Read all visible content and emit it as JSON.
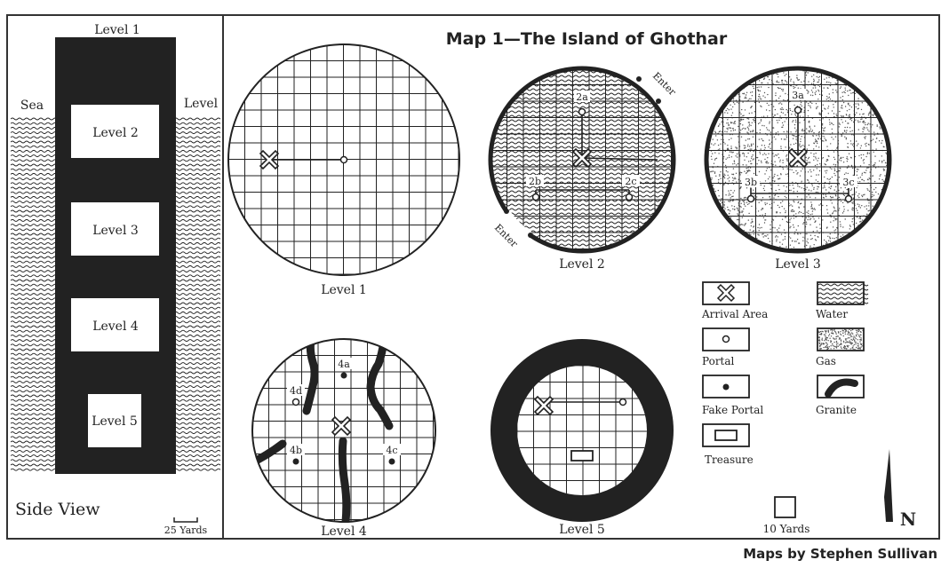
{
  "title": "Map 1—The Island of Ghothar",
  "credit": "Maps by Stephen Sullivan",
  "side_view": {
    "label": "Side View",
    "sea_label": "Sea",
    "level_label": "Level",
    "top_label": "Level 1",
    "levels": [
      "Level 2",
      "Level 3",
      "Level 4",
      "Level 5"
    ],
    "scale_label": "25 Yards"
  },
  "maps": {
    "level1": {
      "label": "Level 1"
    },
    "level2": {
      "label": "Level 2",
      "enter_top": "Enter",
      "enter_bottom": "Enter",
      "markers": [
        "2a",
        "2b",
        "2c"
      ]
    },
    "level3": {
      "label": "Level 3",
      "markers": [
        "3a",
        "3b",
        "3c"
      ]
    },
    "level4": {
      "label": "Level 4",
      "markers": [
        "4a",
        "4b",
        "4c",
        "4d"
      ]
    },
    "level5": {
      "label": "Level 5"
    }
  },
  "legend": [
    {
      "key": "arrival",
      "label": "Arrival Area",
      "icon": "arrival-x-icon"
    },
    {
      "key": "water",
      "label": "Water",
      "icon": "water-wave-icon"
    },
    {
      "key": "portal",
      "label": "Portal",
      "icon": "portal-open-dot-icon"
    },
    {
      "key": "gas",
      "label": "Gas",
      "icon": "gas-stipple-icon"
    },
    {
      "key": "fake_portal",
      "label": "Fake Portal",
      "icon": "fake-portal-dot-icon"
    },
    {
      "key": "granite",
      "label": "Granite",
      "icon": "granite-streak-icon"
    },
    {
      "key": "treasure",
      "label": "Treasure",
      "icon": "treasure-box-icon"
    }
  ],
  "scale": {
    "label": "10 Yards"
  },
  "north": {
    "label": "N"
  }
}
